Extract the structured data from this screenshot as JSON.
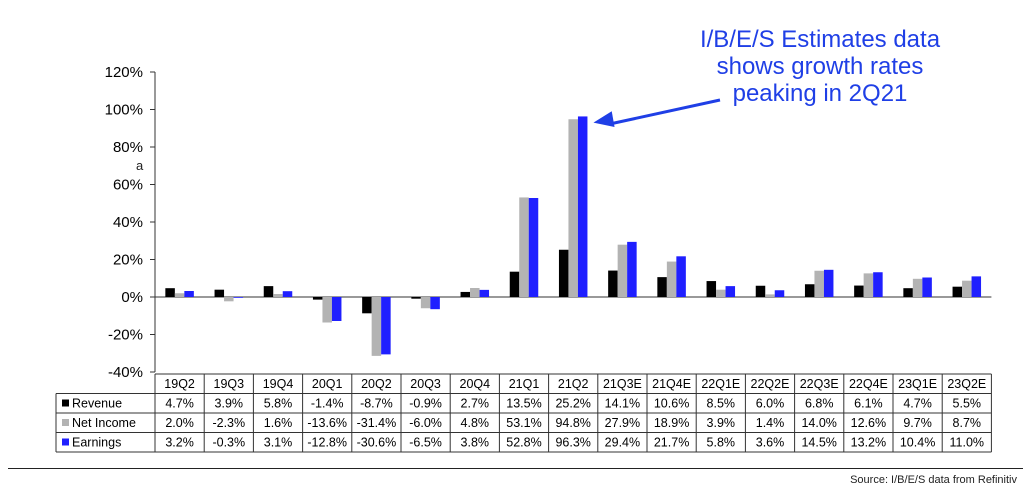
{
  "chart_data": {
    "type": "bar",
    "categories": [
      "19Q2",
      "19Q3",
      "19Q4",
      "20Q1",
      "20Q2",
      "20Q3",
      "20Q4",
      "21Q1",
      "21Q2",
      "21Q3E",
      "21Q4E",
      "22Q1E",
      "22Q2E",
      "22Q3E",
      "22Q4E",
      "23Q1E",
      "23Q2E"
    ],
    "series": [
      {
        "name": "Revenue",
        "color": "#000000",
        "values": [
          4.7,
          3.9,
          5.8,
          -1.4,
          -8.7,
          -0.9,
          2.7,
          13.5,
          25.2,
          14.1,
          10.6,
          8.5,
          6.0,
          6.8,
          6.1,
          4.7,
          5.5
        ],
        "labels": [
          "4.7%",
          "3.9%",
          "5.8%",
          "-1.4%",
          "-8.7%",
          "-0.9%",
          "2.7%",
          "13.5%",
          "25.2%",
          "14.1%",
          "10.6%",
          "8.5%",
          "6.0%",
          "6.8%",
          "6.1%",
          "4.7%",
          "5.5%"
        ]
      },
      {
        "name": "Net Income",
        "color": "#b3b3b3",
        "values": [
          2.0,
          -2.3,
          1.6,
          -13.6,
          -31.4,
          -6.0,
          4.8,
          53.1,
          94.8,
          27.9,
          18.9,
          3.9,
          1.4,
          14.0,
          12.6,
          9.7,
          8.7
        ],
        "labels": [
          "2.0%",
          "-2.3%",
          "1.6%",
          "-13.6%",
          "-31.4%",
          "-6.0%",
          "4.8%",
          "53.1%",
          "94.8%",
          "27.9%",
          "18.9%",
          "3.9%",
          "1.4%",
          "14.0%",
          "12.6%",
          "9.7%",
          "8.7%"
        ]
      },
      {
        "name": "Earnings",
        "color": "#1f1fff",
        "values": [
          3.2,
          -0.3,
          3.1,
          -12.8,
          -30.6,
          -6.5,
          3.8,
          52.8,
          96.3,
          29.4,
          21.7,
          5.8,
          3.6,
          14.5,
          13.2,
          10.4,
          11.0
        ],
        "labels": [
          "3.2%",
          "-0.3%",
          "3.1%",
          "-12.8%",
          "-30.6%",
          "-6.5%",
          "3.8%",
          "52.8%",
          "96.3%",
          "29.4%",
          "21.7%",
          "5.8%",
          "3.6%",
          "14.5%",
          "13.2%",
          "10.4%",
          "11.0%"
        ]
      }
    ],
    "ylim": [
      -40,
      120
    ],
    "yticks": [
      120,
      100,
      80,
      60,
      40,
      20,
      0,
      -20,
      -40
    ],
    "ytick_labels": [
      "120%",
      "100%",
      "80%",
      "60%",
      "40%",
      "20%",
      "0%",
      "-20%",
      "-40%"
    ],
    "grid": false,
    "legend": "data-table"
  },
  "annotation": {
    "lines": [
      "I/B/E/S Estimates data",
      "shows growth rates",
      "peaking in 2Q21"
    ],
    "color": "#1f3fe6"
  },
  "stray_text": "a",
  "source": "Source: I/B/E/S data from Refinitiv"
}
